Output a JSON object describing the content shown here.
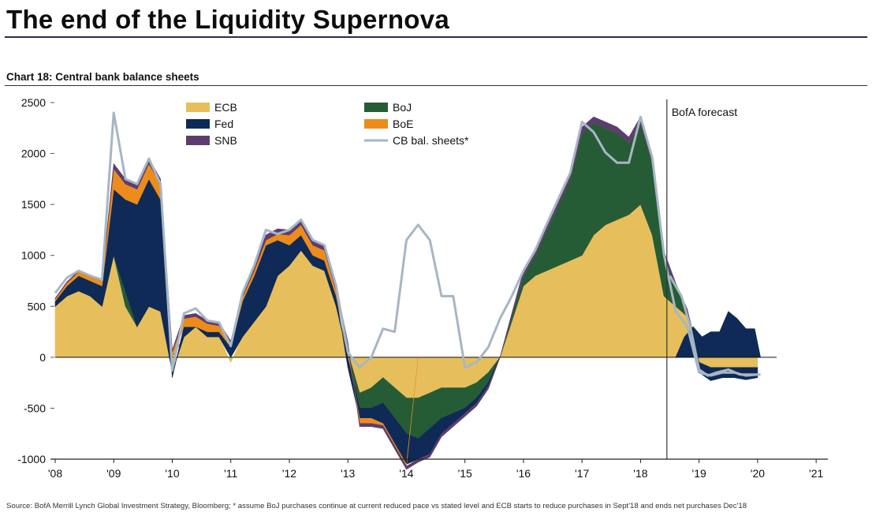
{
  "page": {
    "title": "The end of the Liquidity Supernova",
    "source": "Source:  BofA Merrill Lynch Global Investment Strategy, Bloomberg; * assume BoJ purchases  continue  at current reduced pace vs stated level and ECB starts to reduce purchases  in Sept'18  and ends net purchases Dec'18"
  },
  "colors": {
    "ECB": "#e6bf5c",
    "Fed": "#0f2a57",
    "BoJ": "#255c36",
    "BoE": "#ec8c1c",
    "SNB": "#5c3e6e",
    "CB": "#a7b6c4"
  },
  "chart_data": {
    "type": "area",
    "title": "Chart 18: Central bank balance sheets",
    "xlabel": "",
    "ylabel": "",
    "xlim": [
      2008,
      2021.2
    ],
    "ylim": [
      -1000,
      2500
    ],
    "yticks": [
      2500,
      2000,
      1500,
      1000,
      500,
      0,
      -500,
      -1000
    ],
    "xticks": [
      {
        "value": 2008,
        "label": "'08"
      },
      {
        "value": 2009,
        "label": "'09"
      },
      {
        "value": 2010,
        "label": "'10"
      },
      {
        "value": 2011,
        "label": "'11"
      },
      {
        "value": 2012,
        "label": "'12"
      },
      {
        "value": 2013,
        "label": "'13"
      },
      {
        "value": 2014,
        "label": "'14"
      },
      {
        "value": 2015,
        "label": "'15"
      },
      {
        "value": 2016,
        "label": "'16"
      },
      {
        "value": 2017,
        "label": "'17"
      },
      {
        "value": 2018,
        "label": "'18"
      },
      {
        "value": 2019,
        "label": "'19"
      },
      {
        "value": 2020,
        "label": "'20"
      },
      {
        "value": 2021,
        "label": "'21"
      }
    ],
    "annotation": {
      "label": "BofA forecast",
      "x": 2018.45
    },
    "legend": [
      {
        "key": "ECB",
        "label": "ECB",
        "type": "area"
      },
      {
        "key": "BoJ",
        "label": "BoJ",
        "type": "area"
      },
      {
        "key": "Fed",
        "label": "Fed",
        "type": "area"
      },
      {
        "key": "BoE",
        "label": "BoE",
        "type": "area"
      },
      {
        "key": "SNB",
        "label": "SNB",
        "type": "area"
      },
      {
        "key": "CB",
        "label": "CB bal. sheets*",
        "type": "line"
      }
    ],
    "x": [
      2008.0,
      2008.2,
      2008.4,
      2008.6,
      2008.8,
      2009.0,
      2009.2,
      2009.4,
      2009.6,
      2009.8,
      2010.0,
      2010.2,
      2010.4,
      2010.6,
      2010.8,
      2011.0,
      2011.2,
      2011.4,
      2011.6,
      2011.8,
      2012.0,
      2012.2,
      2012.4,
      2012.6,
      2012.8,
      2013.0,
      2013.2,
      2013.4,
      2013.6,
      2013.8,
      2014.0,
      2014.2,
      2014.4,
      2014.6,
      2014.8,
      2015.0,
      2015.2,
      2015.4,
      2015.6,
      2015.8,
      2016.0,
      2016.2,
      2016.4,
      2016.6,
      2016.8,
      2017.0,
      2017.2,
      2017.4,
      2017.6,
      2017.8,
      2018.0,
      2018.2,
      2018.4,
      2018.6,
      2018.8,
      2019.0,
      2019.2,
      2019.4,
      2019.6,
      2019.8,
      2020.0
    ],
    "series": [
      {
        "key": "ECB",
        "name": "ECB",
        "values": [
          500,
          600,
          650,
          600,
          500,
          1000,
          500,
          300,
          500,
          450,
          -150,
          200,
          300,
          200,
          200,
          -50,
          200,
          350,
          500,
          800,
          900,
          1050,
          900,
          850,
          500,
          50,
          -350,
          -300,
          -200,
          -300,
          -400,
          -400,
          -350,
          -300,
          -300,
          -300,
          -250,
          -150,
          0,
          350,
          700,
          800,
          850,
          900,
          950,
          1000,
          1200,
          1300,
          1350,
          1400,
          1500,
          1200,
          600,
          500,
          400,
          -50,
          -100,
          -100,
          -100,
          -100,
          -100
        ]
      },
      {
        "key": "BoJ",
        "name": "BoJ",
        "values": [
          0,
          0,
          0,
          0,
          0,
          0,
          150,
          0,
          0,
          0,
          0,
          0,
          0,
          0,
          0,
          0,
          0,
          0,
          0,
          0,
          0,
          0,
          0,
          0,
          0,
          0,
          -150,
          -200,
          -250,
          -300,
          -350,
          -400,
          -350,
          -300,
          -250,
          -200,
          -150,
          -100,
          0,
          50,
          100,
          200,
          400,
          600,
          800,
          1200,
          1100,
          950,
          850,
          700,
          800,
          700,
          400,
          200,
          50,
          0,
          0,
          0,
          0,
          0,
          0
        ]
      },
      {
        "key": "Fed",
        "name": "Fed",
        "values": [
          50,
          100,
          150,
          150,
          200,
          650,
          900,
          1200,
          1250,
          1100,
          -50,
          100,
          0,
          50,
          50,
          100,
          350,
          450,
          600,
          350,
          200,
          150,
          100,
          100,
          100,
          -100,
          -100,
          -100,
          -200,
          -250,
          -300,
          -200,
          -250,
          -150,
          -100,
          -50,
          -50,
          -30,
          0,
          0,
          0,
          0,
          0,
          0,
          0,
          0,
          0,
          0,
          0,
          0,
          0,
          0,
          0,
          0,
          0,
          -100,
          -130,
          -100,
          -100,
          -120,
          -100
        ]
      },
      {
        "key": "BoE",
        "name": "BoE",
        "values": [
          20,
          30,
          40,
          40,
          50,
          200,
          150,
          150,
          150,
          150,
          50,
          80,
          100,
          80,
          60,
          30,
          40,
          50,
          50,
          60,
          100,
          100,
          100,
          100,
          50,
          50,
          -50,
          -50,
          -20,
          -20,
          -20,
          0,
          0,
          0,
          0,
          0,
          0,
          0,
          0,
          0,
          0,
          0,
          0,
          0,
          0,
          0,
          0,
          0,
          0,
          0,
          0,
          0,
          0,
          0,
          0,
          0,
          0,
          0,
          0,
          0,
          0
        ]
      },
      {
        "key": "SNB",
        "name": "SNB",
        "values": [
          10,
          10,
          10,
          10,
          10,
          50,
          50,
          50,
          50,
          50,
          20,
          30,
          30,
          30,
          30,
          30,
          40,
          50,
          50,
          50,
          50,
          50,
          50,
          50,
          50,
          50,
          -30,
          -30,
          -30,
          -30,
          -30,
          -30,
          -30,
          -30,
          -30,
          -30,
          -30,
          -30,
          0,
          30,
          50,
          50,
          60,
          60,
          60,
          60,
          60,
          60,
          60,
          60,
          60,
          60,
          40,
          30,
          20,
          0,
          0,
          0,
          0,
          0,
          0
        ]
      }
    ],
    "positive_segments": [
      {
        "series": "Fed",
        "x": [
          2018.6,
          2018.75,
          2018.9,
          2019.05,
          2019.2,
          2019.35,
          2019.5,
          2019.65,
          2019.8,
          2019.95,
          2020.05
        ],
        "values": [
          0,
          200,
          300,
          200,
          250,
          250,
          450,
          380,
          280,
          280,
          0
        ]
      }
    ],
    "line": {
      "key": "CB",
      "name": "CB bal. sheets*",
      "values": [
        630,
        780,
        850,
        800,
        760,
        2400,
        1750,
        1700,
        1950,
        1700,
        -130,
        430,
        480,
        360,
        340,
        110,
        630,
        900,
        1250,
        1210,
        1250,
        1350,
        1150,
        1100,
        700,
        50,
        -100,
        0,
        280,
        250,
        1150,
        1300,
        1150,
        600,
        600,
        -100,
        -50,
        100,
        380,
        600,
        850,
        1050,
        1310,
        1560,
        1810,
        2310,
        2210,
        2010,
        1910,
        1910,
        2360,
        1960,
        1010,
        450,
        300,
        -150,
        -180,
        -150,
        -150,
        -180,
        -170
      ]
    },
    "line_extension": {
      "x": [
        2018.5,
        2018.7,
        2018.85,
        2019.0,
        2019.15,
        2019.3,
        2019.5,
        2019.7,
        2019.9,
        2020.05
      ],
      "values": [
        800,
        600,
        300,
        -120,
        -180,
        -150,
        -120,
        -170,
        -170,
        -170
      ]
    }
  }
}
